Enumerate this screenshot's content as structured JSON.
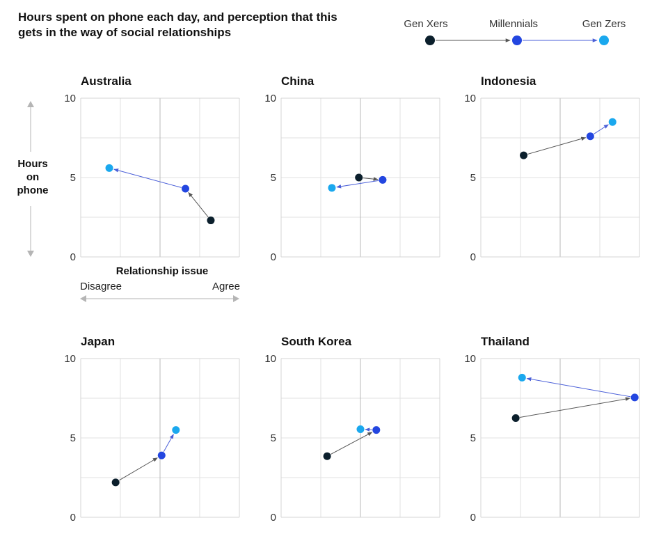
{
  "title": "Hours spent on phone each day, and perception that this gets in the way of social relationships",
  "legend": {
    "items": [
      "Gen Xers",
      "Millennials",
      "Gen Zers"
    ]
  },
  "colors": {
    "gen_xers": "#0b1f2c",
    "millennials": "#2346e0",
    "gen_zers": "#1aa8ee",
    "grid": "#e2e2e2",
    "frame": "#d4d4d4",
    "midline": "#b8b8b8",
    "arrow_from_genx": "#555555",
    "arrow_to_genz": "#4a5fd8"
  },
  "y_axis_label": "Hours on phone",
  "x_axis_label": "Relationship issue",
  "x_axis_left_label": "Disagree",
  "x_axis_right_label": "Agree",
  "chart_data": [
    {
      "type": "scatter",
      "title": "Australia",
      "ylim": [
        0,
        10
      ],
      "xlim": [
        0,
        1
      ],
      "yticks": [
        "0",
        "5",
        "10"
      ],
      "series": [
        {
          "name": "Gen Xers",
          "x": 0.82,
          "y": 2.3
        },
        {
          "name": "Millennials",
          "x": 0.66,
          "y": 4.3
        },
        {
          "name": "Gen Zers",
          "x": 0.18,
          "y": 5.6
        }
      ]
    },
    {
      "type": "scatter",
      "title": "China",
      "ylim": [
        0,
        10
      ],
      "xlim": [
        0,
        1
      ],
      "yticks": [
        "0",
        "5",
        "10"
      ],
      "series": [
        {
          "name": "Gen Xers",
          "x": 0.49,
          "y": 5.0
        },
        {
          "name": "Millennials",
          "x": 0.64,
          "y": 4.85
        },
        {
          "name": "Gen Zers",
          "x": 0.32,
          "y": 4.35
        }
      ]
    },
    {
      "type": "scatter",
      "title": "Indonesia",
      "ylim": [
        0,
        10
      ],
      "xlim": [
        0,
        1
      ],
      "yticks": [
        "0",
        "5",
        "10"
      ],
      "series": [
        {
          "name": "Gen Xers",
          "x": 0.27,
          "y": 6.4
        },
        {
          "name": "Millennials",
          "x": 0.69,
          "y": 7.6
        },
        {
          "name": "Gen Zers",
          "x": 0.83,
          "y": 8.5
        }
      ]
    },
    {
      "type": "scatter",
      "title": "Japan",
      "ylim": [
        0,
        10
      ],
      "xlim": [
        0,
        1
      ],
      "yticks": [
        "0",
        "5",
        "10"
      ],
      "series": [
        {
          "name": "Gen Xers",
          "x": 0.22,
          "y": 2.2
        },
        {
          "name": "Millennials",
          "x": 0.51,
          "y": 3.9
        },
        {
          "name": "Gen Zers",
          "x": 0.6,
          "y": 5.5
        }
      ]
    },
    {
      "type": "scatter",
      "title": "South Korea",
      "ylim": [
        0,
        10
      ],
      "xlim": [
        0,
        1
      ],
      "yticks": [
        "0",
        "5",
        "10"
      ],
      "series": [
        {
          "name": "Gen Xers",
          "x": 0.29,
          "y": 3.85
        },
        {
          "name": "Millennials",
          "x": 0.6,
          "y": 5.5
        },
        {
          "name": "Gen Zers",
          "x": 0.5,
          "y": 5.55
        }
      ]
    },
    {
      "type": "scatter",
      "title": "Thailand",
      "ylim": [
        0,
        10
      ],
      "xlim": [
        0,
        1
      ],
      "yticks": [
        "0",
        "5",
        "10"
      ],
      "series": [
        {
          "name": "Gen Xers",
          "x": 0.22,
          "y": 6.25
        },
        {
          "name": "Millennials",
          "x": 0.97,
          "y": 7.55
        },
        {
          "name": "Gen Zers",
          "x": 0.26,
          "y": 8.8
        }
      ]
    }
  ]
}
